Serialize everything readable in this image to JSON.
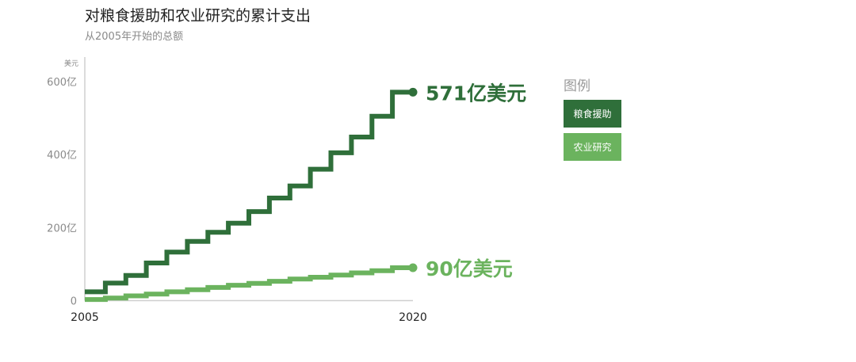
{
  "colors": {
    "food_aid": "#2f6f3a",
    "agri_research": "#6bb35e",
    "axis": "#cfcfcf",
    "tick_text": "#8a8a8a"
  },
  "chart_data": {
    "type": "line",
    "title": "对粮食援助和农业研究的累计支出",
    "subtitle": "从2005年开始的总额",
    "unit_label": "美元",
    "y_ticks": [
      {
        "value": 0,
        "label": "0"
      },
      {
        "value": 200,
        "label": "200亿"
      },
      {
        "value": 400,
        "label": "400亿"
      },
      {
        "value": 600,
        "label": "600亿"
      }
    ],
    "x_ticks": [
      {
        "value": 2005,
        "label": "2005"
      },
      {
        "value": 2020,
        "label": "2020"
      }
    ],
    "xlim": [
      2005,
      2020
    ],
    "ylim": [
      0,
      660
    ],
    "step": true,
    "legend": {
      "title": "图例",
      "placement": "right"
    },
    "series": [
      {
        "name": "粮食援助",
        "x": [
          2005,
          2006,
          2007,
          2008,
          2009,
          2010,
          2011,
          2012,
          2013,
          2014,
          2015,
          2016,
          2017,
          2018,
          2019,
          2020
        ],
        "y": [
          24,
          48,
          69,
          103,
          133,
          162,
          187,
          212,
          244,
          281,
          314,
          360,
          405,
          448,
          505,
          571
        ],
        "end_label": "571亿美元"
      },
      {
        "name": "农业研究",
        "x": [
          2005,
          2006,
          2007,
          2008,
          2009,
          2010,
          2011,
          2012,
          2013,
          2014,
          2015,
          2016,
          2017,
          2018,
          2019,
          2020
        ],
        "y": [
          3,
          7,
          13,
          18,
          24,
          30,
          36,
          42,
          47,
          53,
          59,
          64,
          70,
          76,
          82,
          90
        ],
        "end_label": "90亿美元"
      }
    ]
  }
}
